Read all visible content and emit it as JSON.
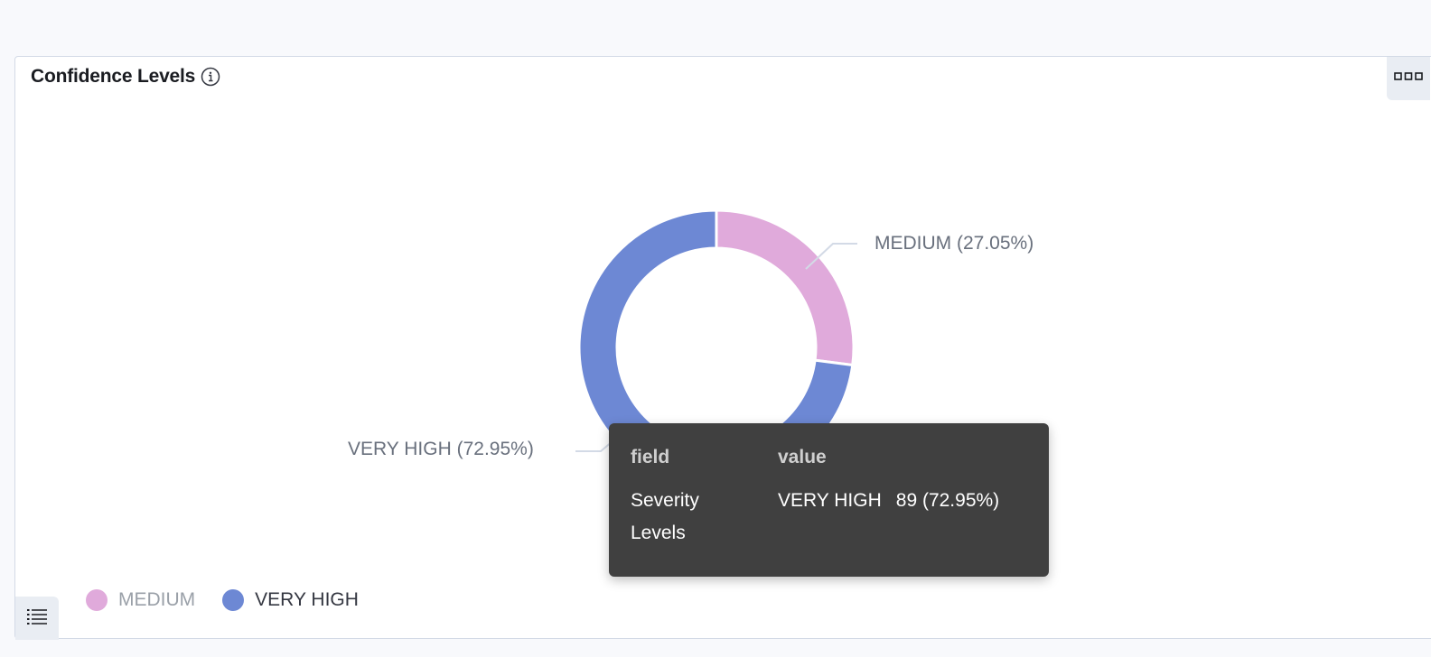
{
  "panel": {
    "title": "Confidence Levels",
    "info_icon": "info-icon",
    "options_icon": "ellipsis-icon",
    "legend_toggle_icon": "list-icon"
  },
  "chart_data": {
    "type": "pie",
    "donut": true,
    "series": [
      {
        "name": "MEDIUM",
        "percent": 27.05,
        "color": "#e0aadb",
        "label": "MEDIUM (27.05%)"
      },
      {
        "name": "VERY HIGH",
        "percent": 72.95,
        "count": 89,
        "color": "#6d88d4",
        "label": "VERY HIGH (72.95%)"
      }
    ],
    "legend": {
      "placement": "bottom-left",
      "items": [
        {
          "label": "MEDIUM",
          "color": "#e0aadb",
          "state": "dimmed"
        },
        {
          "label": "VERY HIGH",
          "color": "#6d88d4",
          "state": "active"
        }
      ]
    }
  },
  "tooltip": {
    "header_field": "field",
    "header_value": "value",
    "field": "Severity Levels",
    "value_label": "VERY HIGH",
    "value_count": "89 (72.95%)"
  }
}
